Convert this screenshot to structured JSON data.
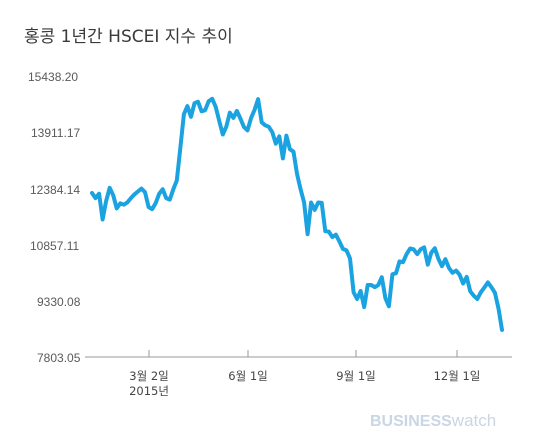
{
  "brand": {
    "bold": "BUSINESS",
    "light": "watch"
  },
  "chart_data": {
    "type": "line",
    "title": "홍콩 1년간 HSCEI 지수 추이",
    "xlabel": "",
    "ylabel": "",
    "ylim": [
      7803.05,
      15438.2
    ],
    "y_ticks": [
      "15438.20",
      "13911.17",
      "12384.14",
      "10857.11",
      "9330.08",
      "7803.05"
    ],
    "x_ticks": [
      {
        "label": "3월 2일",
        "sub": "2015년"
      },
      {
        "label": "6월 1일",
        "sub": ""
      },
      {
        "label": "9월 1일",
        "sub": ""
      },
      {
        "label": "12월 1일",
        "sub": ""
      }
    ],
    "colors": {
      "line": "#1aa3e0",
      "axis": "#9a9a9a"
    },
    "series": [
      {
        "values": [
          12260,
          12120,
          12240,
          11540,
          12040,
          12400,
          12200,
          11840,
          11980,
          11940,
          12000,
          12120,
          12220,
          12300,
          12380,
          12280,
          11880,
          11820,
          11980,
          12240,
          12360,
          12120,
          12080,
          12360,
          12600,
          13500,
          14400,
          14620,
          14330,
          14700,
          14740,
          14480,
          14510,
          14750,
          14820,
          14600,
          14220,
          13850,
          14060,
          14440,
          14300,
          14490,
          14280,
          14050,
          13960,
          14300,
          14520,
          14810,
          14180,
          14100,
          14060,
          13910,
          13600,
          13800,
          13200,
          13820,
          13450,
          13380,
          12780,
          12370,
          12000,
          11140,
          12000,
          11800,
          12000,
          11990,
          11220,
          11210,
          11060,
          11130,
          10940,
          10740,
          10700,
          10480,
          9560,
          9380,
          9600,
          9160,
          9760,
          9760,
          9700,
          9760,
          9970,
          9400,
          9180,
          10050,
          10080,
          10400,
          10380,
          10600,
          10750,
          10730,
          10600,
          10730,
          10780,
          10310,
          10640,
          10760,
          10470,
          10270,
          10460,
          10220,
          10090,
          10150,
          10040,
          9800,
          9980,
          9590,
          9470,
          9380,
          9560,
          9690,
          9830,
          9700,
          9550,
          9120,
          8540
        ]
      }
    ]
  }
}
